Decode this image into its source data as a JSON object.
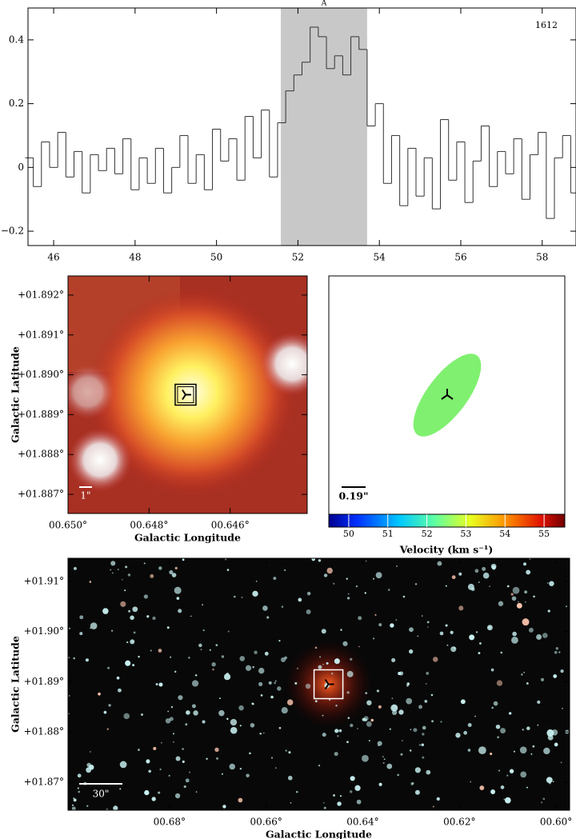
{
  "chart_data": [
    {
      "type": "step",
      "annotation": "1612",
      "highlight": {
        "range": [
          51.58,
          53.7
        ],
        "label": "A"
      },
      "xlim": [
        45.37,
        58.83
      ],
      "ylim": [
        -0.245,
        0.5
      ],
      "xticks": [
        46,
        48,
        50,
        52,
        54,
        56,
        58
      ],
      "yticks": [
        {
          "value": -0.2,
          "label": "−0.2"
        },
        0,
        0.2,
        0.4
      ],
      "color": "#333333",
      "x": [
        45.4,
        45.6,
        45.8,
        46.0,
        46.2,
        46.4,
        46.6,
        46.8,
        47.0,
        47.2,
        47.4,
        47.6,
        47.8,
        48.0,
        48.2,
        48.4,
        48.6,
        48.8,
        49.0,
        49.2,
        49.4,
        49.6,
        49.8,
        50.0,
        50.2,
        50.4,
        50.6,
        50.8,
        51.0,
        51.2,
        51.4,
        51.6,
        51.8,
        52.0,
        52.2,
        52.4,
        52.6,
        52.8,
        53.0,
        53.2,
        53.4,
        53.6,
        53.8,
        54.0,
        54.2,
        54.4,
        54.6,
        54.8,
        55.0,
        55.2,
        55.4,
        55.6,
        55.8,
        56.0,
        56.2,
        56.4,
        56.6,
        56.8,
        57.0,
        57.2,
        57.4,
        57.6,
        57.8,
        58.0,
        58.2,
        58.4,
        58.6,
        58.8
      ],
      "values": [
        0.03,
        -0.06,
        0.08,
        0.0,
        0.11,
        -0.03,
        0.05,
        -0.08,
        0.04,
        -0.01,
        0.06,
        -0.02,
        0.09,
        -0.07,
        0.03,
        -0.05,
        0.06,
        -0.08,
        0.0,
        0.1,
        -0.05,
        0.04,
        -0.07,
        0.12,
        0.02,
        0.09,
        -0.04,
        0.16,
        0.03,
        0.18,
        -0.03,
        0.14,
        0.24,
        0.29,
        0.33,
        0.44,
        0.41,
        0.31,
        0.35,
        0.29,
        0.41,
        0.37,
        0.13,
        0.2,
        -0.05,
        0.1,
        -0.12,
        0.06,
        -0.09,
        0.03,
        -0.13,
        0.15,
        -0.04,
        0.08,
        -0.11,
        0.02,
        0.13,
        -0.06,
        0.05,
        -0.02,
        0.09,
        -0.1,
        0.04,
        0.11,
        -0.16,
        0.03,
        0.1,
        -0.08
      ]
    },
    {
      "type": "image",
      "xlabel": "Galactic Longitude",
      "ylabel": "Galactic Latitude",
      "xlim": [
        0.65,
        0.6441
      ],
      "ylim": [
        1.88652,
        1.89248
      ],
      "xticks": [
        {
          "value": 0.65,
          "label": "00.650°"
        },
        {
          "value": 0.648,
          "label": "00.648°"
        },
        {
          "value": 0.646,
          "label": "00.646°"
        }
      ],
      "yticks": [
        {
          "value": 1.887,
          "label": "+01.887°"
        },
        {
          "value": 1.888,
          "label": "+01.888°"
        },
        {
          "value": 1.889,
          "label": "+01.889°"
        },
        {
          "value": 1.89,
          "label": "+01.890°"
        },
        {
          "value": 1.891,
          "label": "+01.891°"
        },
        {
          "value": 1.892,
          "label": "+01.892°"
        }
      ],
      "marker": {
        "x": 0.6471,
        "y": 1.8895
      },
      "scalebar_label": "1\""
    },
    {
      "type": "ellipse",
      "color": "#80f070",
      "scalebar_label": "0.19\"",
      "colorbar": {
        "lim": [
          49.49,
          55.53
        ],
        "ticks": [
          50,
          51,
          52,
          53,
          54,
          55
        ],
        "label": "Velocity (km s⁻¹)"
      }
    },
    {
      "type": "image",
      "xlabel": "Galactic Longitude",
      "ylabel": "Galactic Latitude",
      "xlim": [
        0.701,
        0.5972
      ],
      "ylim": [
        1.8644,
        1.9146
      ],
      "xticks": [
        {
          "value": 0.68,
          "label": "00.68°"
        },
        {
          "value": 0.66,
          "label": "00.66°"
        },
        {
          "value": 0.64,
          "label": "00.64°"
        },
        {
          "value": 0.62,
          "label": "00.62°"
        },
        {
          "value": 0.6,
          "label": "00.60°"
        }
      ],
      "yticks": [
        {
          "value": 1.87,
          "label": "+01.87°"
        },
        {
          "value": 1.88,
          "label": "+01.88°"
        },
        {
          "value": 1.89,
          "label": "+01.89°"
        },
        {
          "value": 1.9,
          "label": "+01.90°"
        },
        {
          "value": 1.91,
          "label": "+01.91°"
        }
      ],
      "marker": {
        "x": 0.6471,
        "y": 1.8895
      },
      "scalebar_label": "30\""
    }
  ]
}
